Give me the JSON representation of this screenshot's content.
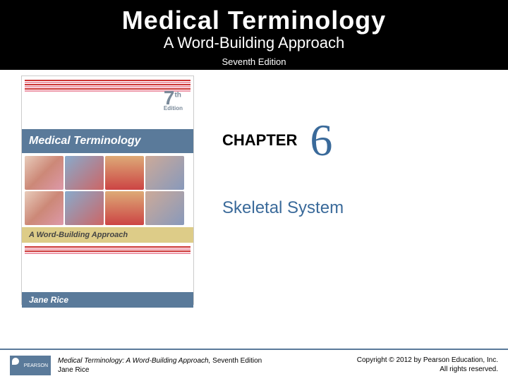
{
  "header": {
    "title": "Medical Terminology",
    "subtitle": "A Word-Building Approach",
    "edition": "Seventh Edition"
  },
  "cover": {
    "editionNum": "7",
    "editionSup": "th",
    "editionLabel": "Edition",
    "band": "Medical Terminology",
    "subBand": "A Word-Building Approach",
    "author": "Jane Rice"
  },
  "chapter": {
    "label": "CHAPTER",
    "number": "6",
    "topic": "Skeletal System"
  },
  "footer": {
    "logo": "PEARSON",
    "bookTitle": "Medical Terminology: A Word-Building Approach,",
    "bookEdition": " Seventh Edition",
    "author": "Jane Rice",
    "copyright": "Copyright © 2012 by Pearson Education, Inc.",
    "rights": "All rights reserved."
  },
  "colors": {
    "headerBg": "#000000",
    "accent": "#5a7a9a",
    "chapterNum": "#3a6a9a"
  }
}
